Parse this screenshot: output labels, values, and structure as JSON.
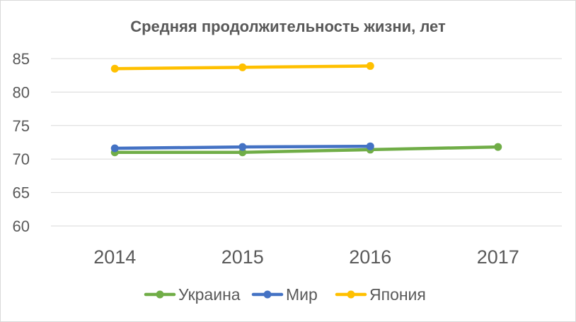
{
  "chart_data": {
    "type": "line",
    "title": "Средняя продолжительность жизни, лет",
    "xlabel": "",
    "ylabel": "",
    "categories": [
      "2014",
      "2015",
      "2016",
      "2017"
    ],
    "ylim": [
      60,
      85
    ],
    "yticks": [
      60,
      65,
      70,
      75,
      80,
      85
    ],
    "grid": true,
    "legend_position": "bottom",
    "series": [
      {
        "name": "Украина",
        "color": "#70ad47",
        "values": [
          71.0,
          71.0,
          71.4,
          71.8
        ]
      },
      {
        "name": "Мир",
        "color": "#4472c4",
        "values": [
          71.6,
          71.8,
          71.9,
          null
        ]
      },
      {
        "name": "Япония",
        "color": "#ffc000",
        "values": [
          83.5,
          83.7,
          83.9,
          null
        ]
      }
    ]
  }
}
